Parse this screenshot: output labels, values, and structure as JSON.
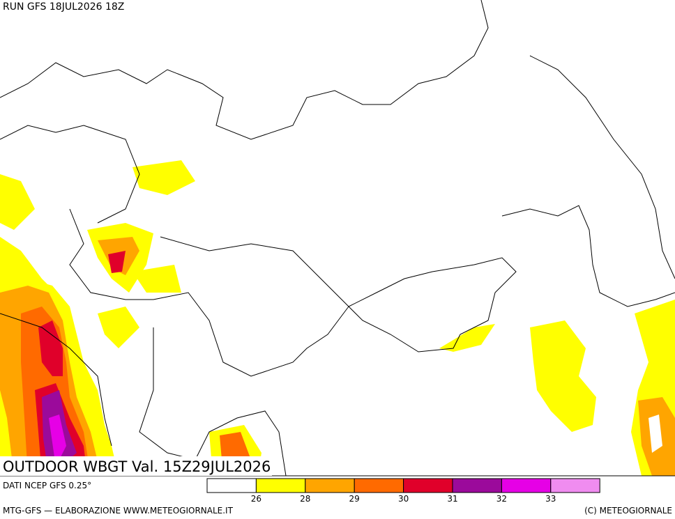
{
  "header": {
    "run": "RUN GFS 18JUL2026 18Z"
  },
  "title": "OUTDOOR WBGT Val. 15Z29JUL2026",
  "source": "DATI NCEP GFS 0.25°",
  "legend": {
    "levels": [
      26,
      28,
      29,
      30,
      31,
      32,
      33
    ],
    "colors": [
      "#ffffff",
      "#ffff00",
      "#ffa500",
      "#ff6a00",
      "#e0002a",
      "#9b0a9b",
      "#e600e6",
      "#f08cf0"
    ]
  },
  "footer": {
    "left": "MTG-GFS — ELABORAZIONE WWW.METEOGIORNALE.IT",
    "right": "(C) METEOGIORNALE"
  }
}
